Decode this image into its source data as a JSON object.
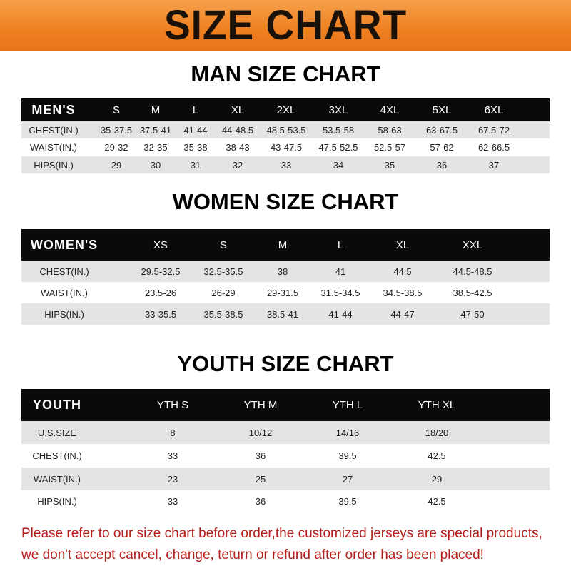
{
  "title": "SIZE CHART",
  "accent_color": "#ee7f1f",
  "men": {
    "title": "MAN SIZE CHART",
    "header": [
      "MEN'S",
      "S",
      "M",
      "L",
      "XL",
      "2XL",
      "3XL",
      "4XL",
      "5XL",
      "6XL"
    ],
    "rows": [
      [
        "CHEST(IN.)",
        "35-37.5",
        "37.5-41",
        "41-44",
        "44-48.5",
        "48.5-53.5",
        "53.5-58",
        "58-63",
        "63-67.5",
        "67.5-72"
      ],
      [
        "WAIST(IN.)",
        "29-32",
        "32-35",
        "35-38",
        "38-43",
        "43-47.5",
        "47.5-52.5",
        "52.5-57",
        "57-62",
        "62-66.5"
      ],
      [
        "HIPS(IN.)",
        "29",
        "30",
        "31",
        "32",
        "33",
        "34",
        "35",
        "36",
        "37"
      ]
    ]
  },
  "women": {
    "title": "WOMEN SIZE CHART",
    "header": [
      "WOMEN'S",
      "XS",
      "S",
      "M",
      "L",
      "XL",
      "XXL"
    ],
    "rows": [
      [
        "CHEST(IN.)",
        "29.5-32.5",
        "32.5-35.5",
        "38",
        "41",
        "44.5",
        "44.5-48.5"
      ],
      [
        "WAIST(IN.)",
        "23.5-26",
        "26-29",
        "29-31.5",
        "31.5-34.5",
        "34.5-38.5",
        "38.5-42.5"
      ],
      [
        "HIPS(IN.)",
        "33-35.5",
        "35.5-38.5",
        "38.5-41",
        "41-44",
        "44-47",
        "47-50"
      ]
    ]
  },
  "youth": {
    "title": "YOUTH SIZE CHART",
    "header": [
      "YOUTH",
      "YTH S",
      "YTH M",
      "YTH L",
      "YTH XL"
    ],
    "rows": [
      [
        "U.S.SIZE",
        "8",
        "10/12",
        "14/16",
        "18/20"
      ],
      [
        "CHEST(IN.)",
        "33",
        "36",
        "39.5",
        "42.5"
      ],
      [
        "WAIST(IN.)",
        "23",
        "25",
        "27",
        "29"
      ],
      [
        "HIPS(IN.)",
        "33",
        "36",
        "39.5",
        "42.5"
      ]
    ]
  },
  "notice": {
    "line1": "Please refer to our size chart before order,the customized jerseys are special products,",
    "line2": "we don't accept cancel, change, teturn or refund after order has been placed!"
  }
}
